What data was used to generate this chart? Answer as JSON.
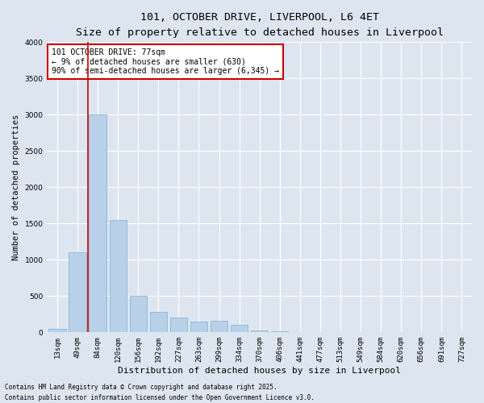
{
  "title_line1": "101, OCTOBER DRIVE, LIVERPOOL, L6 4ET",
  "title_line2": "Size of property relative to detached houses in Liverpool",
  "xlabel": "Distribution of detached houses by size in Liverpool",
  "ylabel": "Number of detached properties",
  "bar_color": "#b8d0e8",
  "bar_edge_color": "#7aafd4",
  "background_color": "#dde6f0",
  "grid_color": "#ffffff",
  "categories": [
    "13sqm",
    "49sqm",
    "84sqm",
    "120sqm",
    "156sqm",
    "192sqm",
    "227sqm",
    "263sqm",
    "299sqm",
    "334sqm",
    "370sqm",
    "406sqm",
    "441sqm",
    "477sqm",
    "513sqm",
    "549sqm",
    "584sqm",
    "620sqm",
    "656sqm",
    "691sqm",
    "727sqm"
  ],
  "values": [
    50,
    1100,
    3000,
    1550,
    500,
    280,
    200,
    150,
    155,
    100,
    30,
    15,
    5,
    2,
    1,
    0,
    0,
    0,
    0,
    0,
    0
  ],
  "ylim": [
    0,
    4000
  ],
  "yticks": [
    0,
    500,
    1000,
    1500,
    2000,
    2500,
    3000,
    3500,
    4000
  ],
  "vline_color": "#cc0000",
  "annotation_text": "101 OCTOBER DRIVE: 77sqm\n← 9% of detached houses are smaller (630)\n90% of semi-detached houses are larger (6,345) →",
  "annotation_box_color": "#ffffff",
  "annotation_box_edge": "#cc0000",
  "footer_line1": "Contains HM Land Registry data © Crown copyright and database right 2025.",
  "footer_line2": "Contains public sector information licensed under the Open Government Licence v3.0.",
  "title_fontsize": 9.5,
  "subtitle_fontsize": 8.5,
  "ylabel_fontsize": 7.5,
  "xlabel_fontsize": 8,
  "tick_fontsize": 6.5,
  "annotation_fontsize": 7,
  "footer_fontsize": 5.5
}
